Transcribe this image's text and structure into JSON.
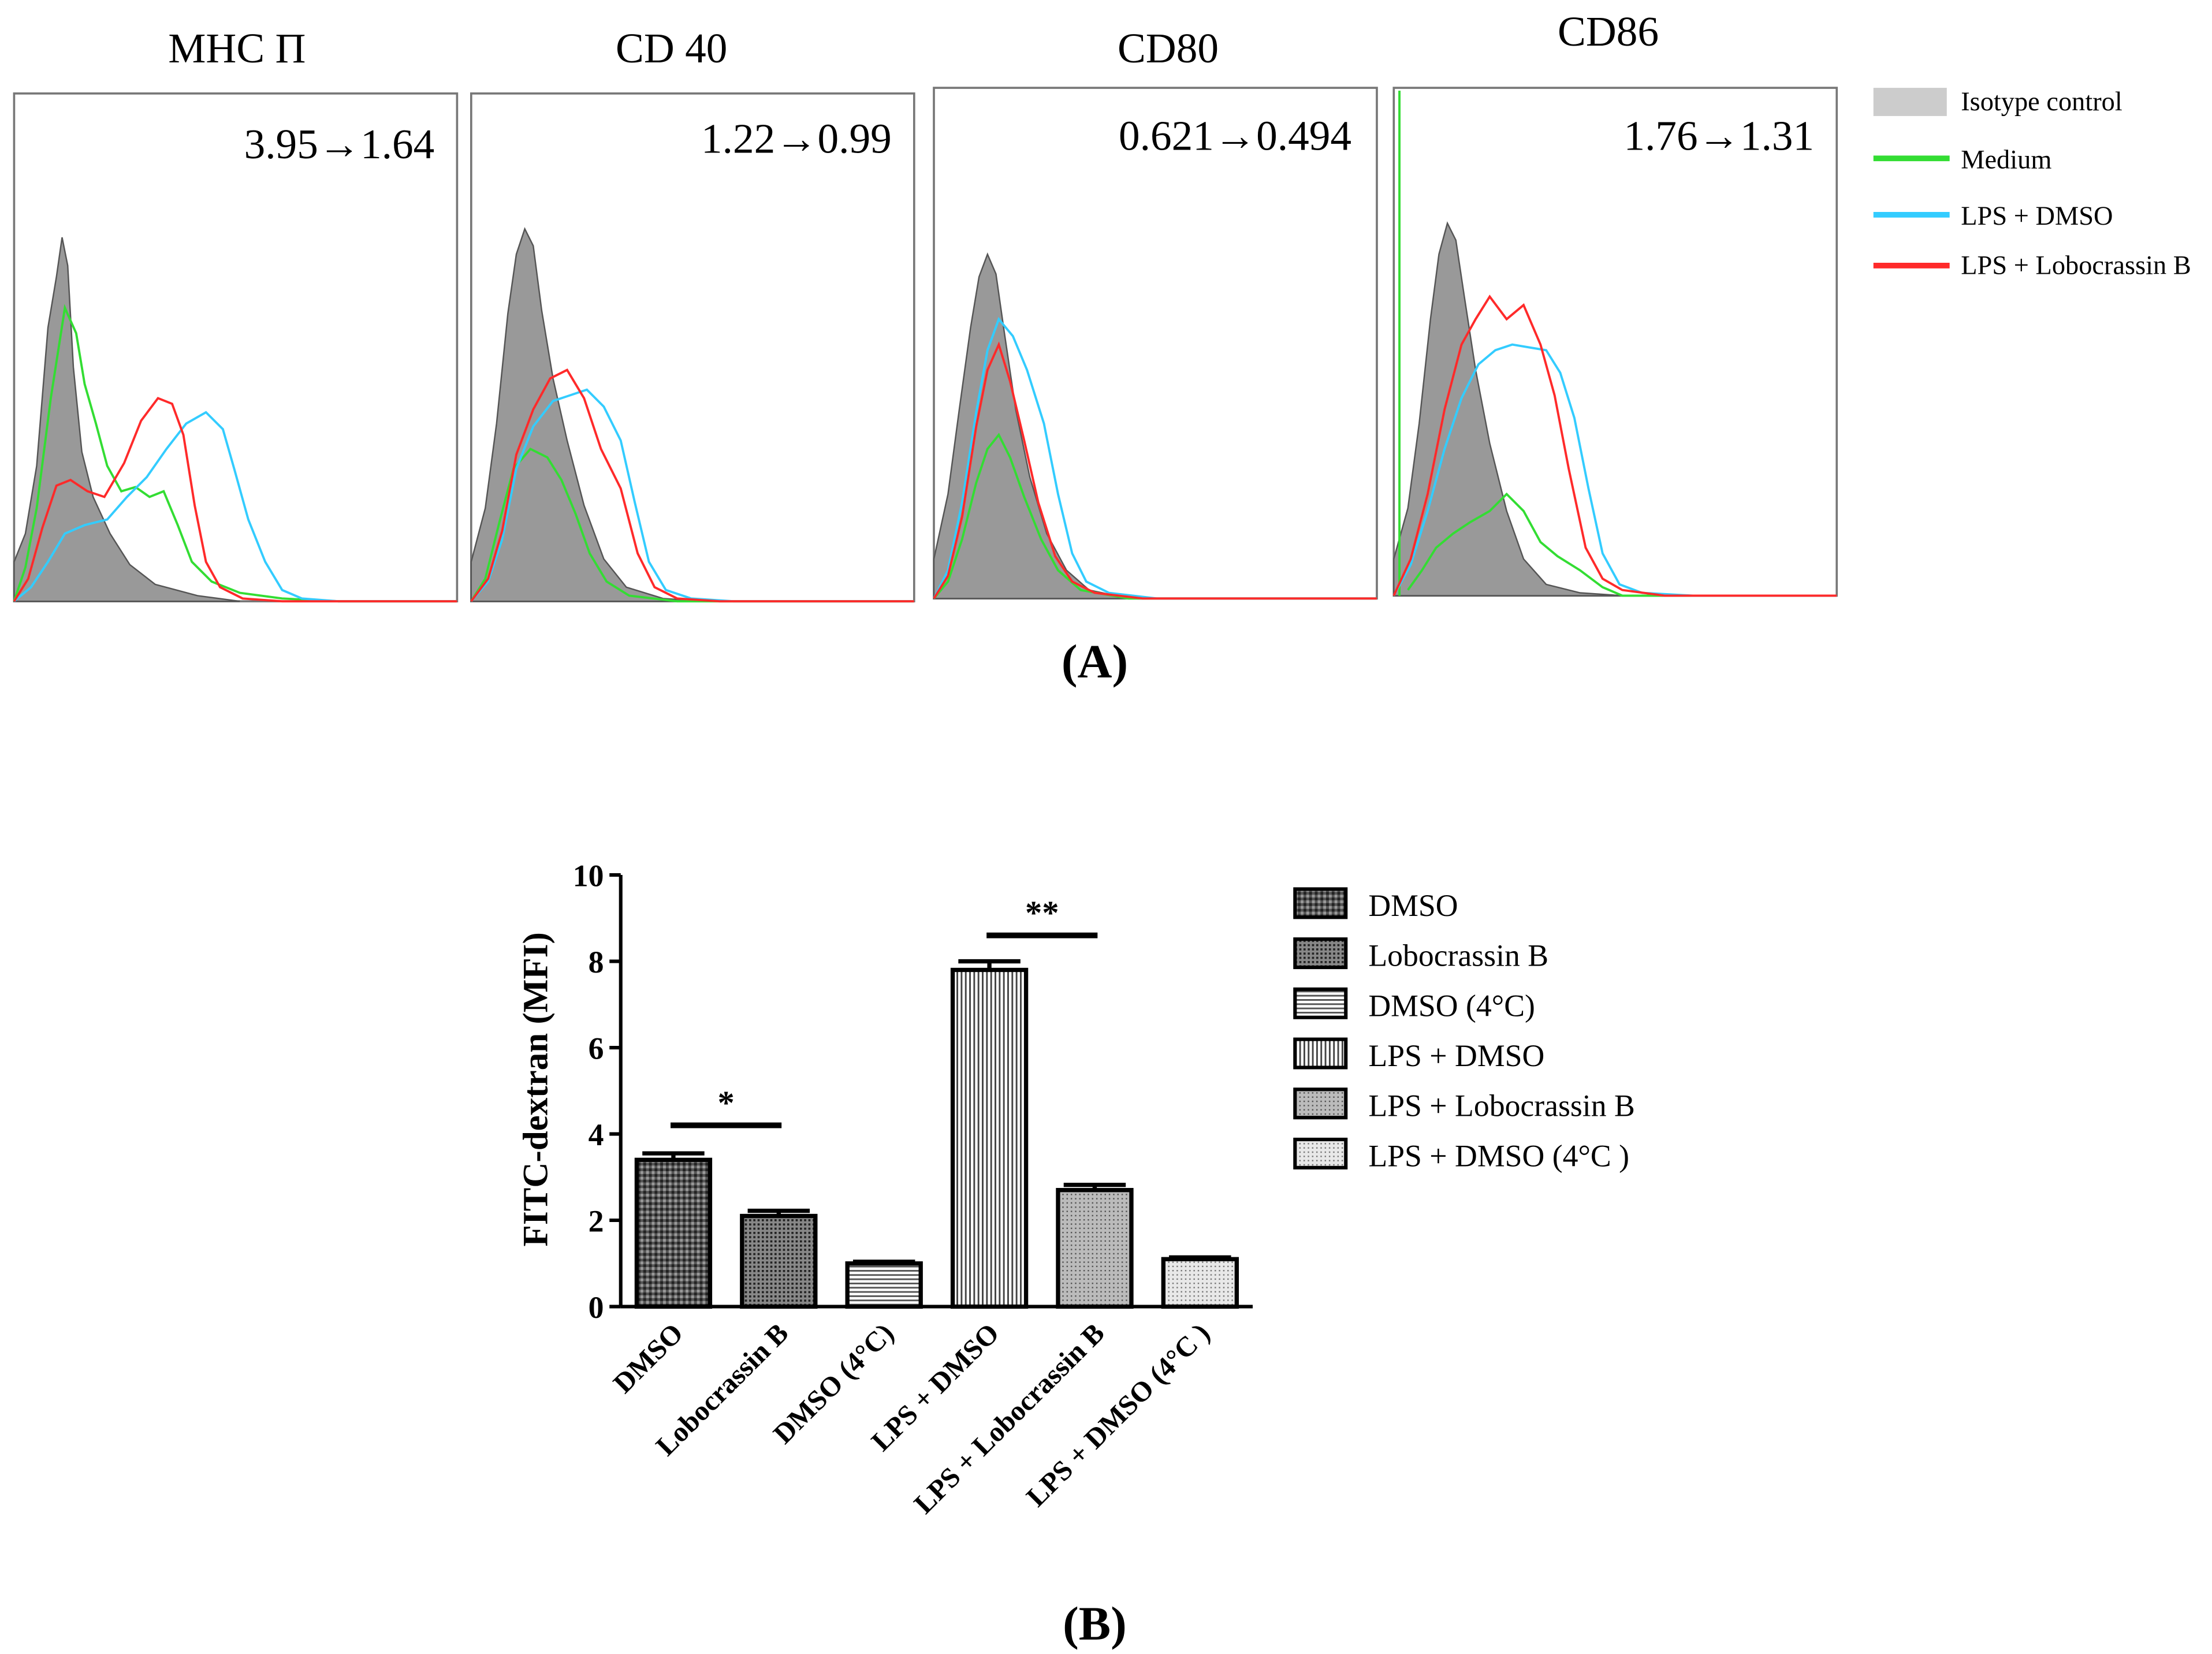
{
  "figure": {
    "panel_a_label": "A",
    "panel_b_label": "B"
  },
  "chart_data": [
    {
      "type": "histogram",
      "panel": "A",
      "panels": [
        {
          "title": "MHC Π",
          "annotation": "3.95→1.64"
        },
        {
          "title": "CD 40",
          "annotation": "1.22→0.99"
        },
        {
          "title": "CD80",
          "annotation": "0.621→0.494"
        },
        {
          "title": "CD86",
          "annotation": "1.76→1.31"
        }
      ],
      "legend": [
        {
          "label": "Isotype control",
          "color": "#bdbdbd"
        },
        {
          "label": "Medium",
          "color": "#33dd33"
        },
        {
          "label": "LPS + DMSO",
          "color": "#33ccff"
        },
        {
          "label": "LPS + Lobocrassin B",
          "color": "#ff2a2a"
        }
      ]
    },
    {
      "type": "bar",
      "panel": "B",
      "ylabel": "FITC-dextran (MFI)",
      "ylim": [
        0,
        10
      ],
      "yticks": [
        0,
        2,
        4,
        6,
        8,
        10
      ],
      "categories": [
        "DMSO",
        "Lobocrassin B",
        "DMSO (4°C)",
        "LPS + DMSO",
        "LPS + Lobocrassin B",
        "LPS + DMSO (4°C )"
      ],
      "values": [
        3.4,
        2.1,
        1.0,
        7.8,
        2.7,
        1.1
      ],
      "errors": [
        0.15,
        0.12,
        0.04,
        0.2,
        0.12,
        0.04
      ],
      "significance": [
        {
          "label": "*",
          "from": 0,
          "to": 1,
          "y": 4.2
        },
        {
          "label": "**",
          "from": 3,
          "to": 4,
          "y": 8.6
        }
      ],
      "legend": [
        "DMSO",
        "Lobocrassin B",
        "DMSO (4°C)",
        "LPS + DMSO",
        "LPS + Lobocrassin B",
        "LPS + DMSO (4°C )"
      ]
    }
  ]
}
